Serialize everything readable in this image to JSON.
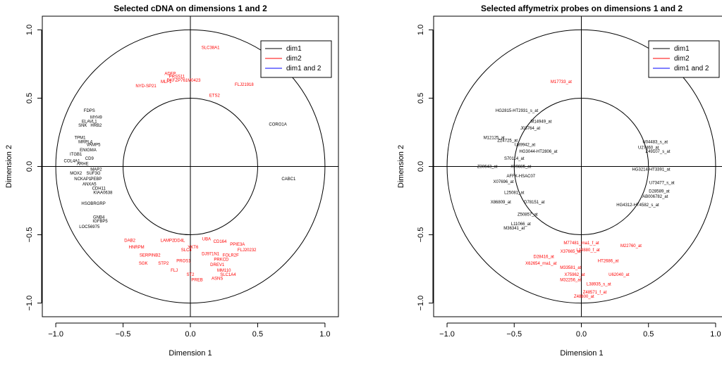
{
  "chart_data": [
    {
      "type": "scatter",
      "title": "Selected cDNA on dimensions 1 and 2",
      "xlabel": "Dimension 1",
      "ylabel": "Dimension 2",
      "xlim": [
        -1.1,
        1.1
      ],
      "ylim": [
        -1.1,
        1.1
      ],
      "xticks": [
        "-1.0",
        "-0.5",
        "0.0",
        "0.5",
        "1.0"
      ],
      "yticks": [
        "-1.0",
        "-0.5",
        "0.0",
        "0.5",
        "1.0"
      ],
      "circles": [
        1.0,
        0.5
      ],
      "legend": {
        "placement": "top-right",
        "entries": [
          {
            "label": "dim1",
            "color": "#000000"
          },
          {
            "label": "dim2",
            "color": "#ff0000"
          },
          {
            "label": "dim1 and 2",
            "color": "#0000ff"
          }
        ]
      },
      "points": [
        {
          "x": -0.75,
          "y": 0.4,
          "label": "FDPS",
          "group": "dim1"
        },
        {
          "x": -0.7,
          "y": 0.35,
          "label": "MYH9",
          "group": "dim1"
        },
        {
          "x": -0.75,
          "y": 0.32,
          "label": "ELAVL1",
          "group": "dim1"
        },
        {
          "x": -0.8,
          "y": 0.29,
          "label": "SNK",
          "group": "dim1"
        },
        {
          "x": -0.7,
          "y": 0.29,
          "label": "HRB2",
          "group": "dim1"
        },
        {
          "x": -0.82,
          "y": 0.2,
          "label": "TPM1",
          "group": "dim1"
        },
        {
          "x": -0.78,
          "y": 0.17,
          "label": "MRPL4",
          "group": "dim1"
        },
        {
          "x": -0.72,
          "y": 0.15,
          "label": "VAMP5",
          "group": "dim1"
        },
        {
          "x": -0.76,
          "y": 0.11,
          "label": "ENIGMA",
          "group": "dim1"
        },
        {
          "x": -0.85,
          "y": 0.08,
          "label": "ITGB1",
          "group": "dim1"
        },
        {
          "x": -0.75,
          "y": 0.05,
          "label": "CD9",
          "group": "dim1"
        },
        {
          "x": -0.88,
          "y": 0.03,
          "label": "COL4A1",
          "group": "dim1"
        },
        {
          "x": -0.8,
          "y": 0.01,
          "label": "ARHE",
          "group": "dim1"
        },
        {
          "x": -0.7,
          "y": -0.03,
          "label": "MAP2",
          "group": "dim1"
        },
        {
          "x": -0.85,
          "y": -0.06,
          "label": "MOX2",
          "group": "dim1"
        },
        {
          "x": -0.72,
          "y": -0.06,
          "label": "SUF3G",
          "group": "dim1"
        },
        {
          "x": -0.8,
          "y": -0.1,
          "label": "NCKAP1",
          "group": "dim1"
        },
        {
          "x": -0.7,
          "y": -0.1,
          "label": "PEBP",
          "group": "dim1"
        },
        {
          "x": -0.75,
          "y": -0.14,
          "label": "ANXA5",
          "group": "dim1"
        },
        {
          "x": -0.68,
          "y": -0.17,
          "label": "CDH11",
          "group": "dim1"
        },
        {
          "x": -0.65,
          "y": -0.2,
          "label": "KIAA0638",
          "group": "dim1"
        },
        {
          "x": 0.65,
          "y": 0.3,
          "label": "CORO1A",
          "group": "dim1"
        },
        {
          "x": 0.73,
          "y": -0.1,
          "label": "CABC1",
          "group": "dim1"
        },
        {
          "x": -0.72,
          "y": -0.28,
          "label": "HSOBRGRP",
          "group": "dim1"
        },
        {
          "x": -0.68,
          "y": -0.38,
          "label": "GNB4",
          "group": "dim1"
        },
        {
          "x": -0.67,
          "y": -0.41,
          "label": "IGFBP5",
          "group": "dim1"
        },
        {
          "x": -0.75,
          "y": -0.45,
          "label": "LOC56975",
          "group": "dim1"
        },
        {
          "x": 0.15,
          "y": 0.86,
          "label": "SLC38A1",
          "group": "dim2"
        },
        {
          "x": -0.15,
          "y": 0.67,
          "label": "ADFP",
          "group": "dim2"
        },
        {
          "x": -0.1,
          "y": 0.65,
          "label": "PRSS11",
          "group": "dim2"
        },
        {
          "x": -0.33,
          "y": 0.58,
          "label": "NYD-SP21",
          "group": "dim2"
        },
        {
          "x": -0.18,
          "y": 0.61,
          "label": "MLF1",
          "group": "dim2"
        },
        {
          "x": -0.05,
          "y": 0.62,
          "label": "DKFZP761M0423",
          "group": "dim2"
        },
        {
          "x": 0.4,
          "y": 0.59,
          "label": "FLJ21918",
          "group": "dim2"
        },
        {
          "x": 0.18,
          "y": 0.51,
          "label": "ETS2",
          "group": "dim2"
        },
        {
          "x": -0.45,
          "y": -0.55,
          "label": "DAB2",
          "group": "dim2"
        },
        {
          "x": -0.4,
          "y": -0.6,
          "label": "HNRPM",
          "group": "dim2"
        },
        {
          "x": -0.17,
          "y": -0.55,
          "label": "LAMP2",
          "group": "dim2"
        },
        {
          "x": -0.08,
          "y": -0.55,
          "label": "DD4L",
          "group": "dim2"
        },
        {
          "x": 0.12,
          "y": -0.54,
          "label": "UBA",
          "group": "dim2"
        },
        {
          "x": 0.22,
          "y": -0.56,
          "label": "CD164",
          "group": "dim2"
        },
        {
          "x": 0.35,
          "y": -0.58,
          "label": "PPIE3A",
          "group": "dim2"
        },
        {
          "x": 0.42,
          "y": -0.62,
          "label": "FLJ20232",
          "group": "dim2"
        },
        {
          "x": 0.02,
          "y": -0.6,
          "label": "YKT6",
          "group": "dim2"
        },
        {
          "x": -0.03,
          "y": -0.62,
          "label": "SLC4",
          "group": "dim2"
        },
        {
          "x": 0.15,
          "y": -0.65,
          "label": "DJ971N1",
          "group": "dim2"
        },
        {
          "x": 0.3,
          "y": -0.66,
          "label": "FOLR2F",
          "group": "dim2"
        },
        {
          "x": 0.23,
          "y": -0.69,
          "label": "PRKCD",
          "group": "dim2"
        },
        {
          "x": -0.3,
          "y": -0.66,
          "label": "SERPINB2",
          "group": "dim2"
        },
        {
          "x": -0.05,
          "y": -0.7,
          "label": "PROS1",
          "group": "dim2"
        },
        {
          "x": 0.2,
          "y": -0.73,
          "label": "DREV1",
          "group": "dim2"
        },
        {
          "x": -0.35,
          "y": -0.72,
          "label": "SGK",
          "group": "dim2"
        },
        {
          "x": -0.2,
          "y": -0.72,
          "label": "STP2",
          "group": "dim2"
        },
        {
          "x": -0.12,
          "y": -0.77,
          "label": "FLJ",
          "group": "dim2"
        },
        {
          "x": 0.25,
          "y": -0.77,
          "label": "MM110",
          "group": "dim2"
        },
        {
          "x": 0.0,
          "y": -0.8,
          "label": "ST2",
          "group": "dim2"
        },
        {
          "x": 0.28,
          "y": -0.8,
          "label": "SLC1A4",
          "group": "dim2"
        },
        {
          "x": 0.2,
          "y": -0.83,
          "label": "ASNS",
          "group": "dim2"
        },
        {
          "x": 0.05,
          "y": -0.84,
          "label": "PREB",
          "group": "dim2"
        }
      ]
    },
    {
      "type": "scatter",
      "title": "Selected affymetrix probes on dimensions 1 and 2",
      "xlabel": "Dimension 1",
      "ylabel": "Dimension 2",
      "xlim": [
        -1.1,
        1.1
      ],
      "ylim": [
        -1.1,
        1.1
      ],
      "xticks": [
        "-1.0",
        "-0.5",
        "0.0",
        "0.5",
        "1.0"
      ],
      "yticks": [
        "-1.0",
        "-0.5",
        "0.0",
        "0.5",
        "1.0"
      ],
      "circles": [
        1.0,
        0.5
      ],
      "legend": {
        "placement": "top-right",
        "entries": [
          {
            "label": "dim1",
            "color": "#000000"
          },
          {
            "label": "dim2",
            "color": "#ff0000"
          },
          {
            "label": "dim1 and 2",
            "color": "#0000ff"
          }
        ]
      },
      "points": [
        {
          "x": -0.48,
          "y": 0.4,
          "label": "HG2815-HT2931_s_at",
          "group": "dim1"
        },
        {
          "x": -0.3,
          "y": 0.32,
          "label": "M14949_at",
          "group": "dim1"
        },
        {
          "x": -0.38,
          "y": 0.27,
          "label": "J03764_at",
          "group": "dim1"
        },
        {
          "x": -0.65,
          "y": 0.2,
          "label": "M12125_at",
          "group": "dim1"
        },
        {
          "x": -0.55,
          "y": 0.18,
          "label": "Z24725_at",
          "group": "dim1"
        },
        {
          "x": -0.42,
          "y": 0.15,
          "label": "U89942_at",
          "group": "dim1"
        },
        {
          "x": -0.32,
          "y": 0.1,
          "label": "HG3044-HT2806_at",
          "group": "dim1"
        },
        {
          "x": -0.5,
          "y": 0.05,
          "label": "S70114_at",
          "group": "dim1"
        },
        {
          "x": -0.45,
          "y": -0.01,
          "label": "X99885_at",
          "group": "dim1"
        },
        {
          "x": -0.7,
          "y": -0.01,
          "label": "Z30643_at",
          "group": "dim1"
        },
        {
          "x": -0.45,
          "y": -0.08,
          "label": "AFFX-HSAC07",
          "group": "dim1"
        },
        {
          "x": -0.58,
          "y": -0.12,
          "label": "X07696_at",
          "group": "dim1"
        },
        {
          "x": -0.5,
          "y": -0.2,
          "label": "L25081_at",
          "group": "dim1"
        },
        {
          "x": -0.6,
          "y": -0.27,
          "label": "X86809_at",
          "group": "dim1"
        },
        {
          "x": -0.35,
          "y": -0.27,
          "label": "D78151_at",
          "group": "dim1"
        },
        {
          "x": -0.4,
          "y": -0.36,
          "label": "Z50857_at",
          "group": "dim1"
        },
        {
          "x": -0.45,
          "y": -0.43,
          "label": "L11066_at",
          "group": "dim1"
        },
        {
          "x": -0.5,
          "y": -0.46,
          "label": "M36341_at",
          "group": "dim1"
        },
        {
          "x": 0.55,
          "y": 0.17,
          "label": "U04483_s_at",
          "group": "dim1"
        },
        {
          "x": 0.5,
          "y": 0.13,
          "label": "U27460_at",
          "group": "dim1"
        },
        {
          "x": 0.57,
          "y": 0.1,
          "label": "Z49107_s_at",
          "group": "dim1"
        },
        {
          "x": 0.52,
          "y": -0.03,
          "label": "HG3214-HT3391_at",
          "group": "dim1"
        },
        {
          "x": 0.6,
          "y": -0.13,
          "label": "U73477_s_at",
          "group": "dim1"
        },
        {
          "x": 0.58,
          "y": -0.19,
          "label": "D28589_at",
          "group": "dim1"
        },
        {
          "x": 0.55,
          "y": -0.23,
          "label": "AB006782_at",
          "group": "dim1"
        },
        {
          "x": 0.42,
          "y": -0.29,
          "label": "HG4312-HT4582_s_at",
          "group": "dim1"
        },
        {
          "x": -0.15,
          "y": 0.61,
          "label": "M17733_at",
          "group": "dim2"
        },
        {
          "x": 0.0,
          "y": -0.57,
          "label": "M77481_rna1_f_at",
          "group": "dim2"
        },
        {
          "x": 0.37,
          "y": -0.59,
          "label": "M22760_at",
          "group": "dim2"
        },
        {
          "x": -0.08,
          "y": -0.63,
          "label": "X37665_at",
          "group": "dim2"
        },
        {
          "x": 0.05,
          "y": -0.62,
          "label": "L19880_f_at",
          "group": "dim2"
        },
        {
          "x": -0.28,
          "y": -0.67,
          "label": "D28416_at",
          "group": "dim2"
        },
        {
          "x": -0.3,
          "y": -0.72,
          "label": "X62654_rna1_at",
          "group": "dim2"
        },
        {
          "x": 0.2,
          "y": -0.7,
          "label": "HT2686_at",
          "group": "dim2"
        },
        {
          "x": -0.08,
          "y": -0.75,
          "label": "M33581_at",
          "group": "dim2"
        },
        {
          "x": -0.05,
          "y": -0.8,
          "label": "X75962_at",
          "group": "dim2"
        },
        {
          "x": 0.28,
          "y": -0.8,
          "label": "U62040_at",
          "group": "dim2"
        },
        {
          "x": -0.08,
          "y": -0.84,
          "label": "M32256_at",
          "group": "dim2"
        },
        {
          "x": 0.13,
          "y": -0.87,
          "label": "L38935_s_at",
          "group": "dim2"
        },
        {
          "x": 0.1,
          "y": -0.93,
          "label": "Z48571_f_at",
          "group": "dim2"
        },
        {
          "x": 0.02,
          "y": -0.96,
          "label": "Z48800_at",
          "group": "dim2"
        }
      ]
    }
  ]
}
